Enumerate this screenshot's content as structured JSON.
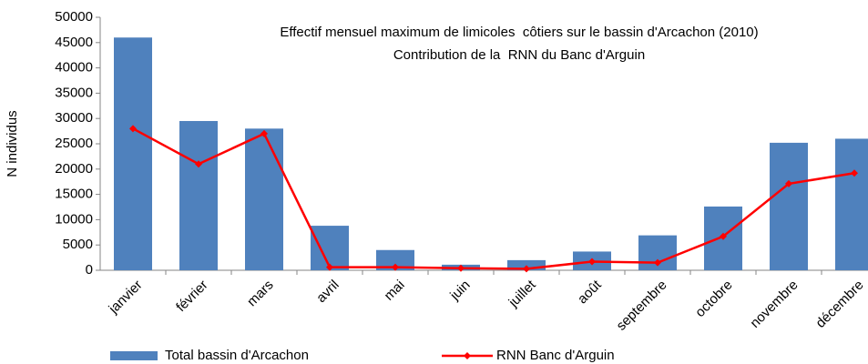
{
  "chart_data": {
    "type": "bar",
    "title": "Effectif mensuel maximum de limicoles  côtiers sur le bassin d'Arcachon (2010)",
    "subtitle": "Contribution de la  RNN du Banc d'Arguin",
    "y_label": "N individus",
    "categories": [
      "janvier",
      "février",
      "mars",
      "avril",
      "mai",
      "juin",
      "juillet",
      "août",
      "septembre",
      "octobre",
      "novembre",
      "décembre"
    ],
    "series": [
      {
        "name": "Total bassin d'Arcachon",
        "type": "bar",
        "color": "#4f81bd",
        "values": [
          46000,
          29500,
          28000,
          8800,
          4000,
          1100,
          2000,
          3700,
          6900,
          12600,
          25200,
          26000
        ]
      },
      {
        "name": "RNN Banc d'Arguin",
        "type": "line",
        "color": "#ff0000",
        "values": [
          28000,
          21000,
          27000,
          600,
          600,
          400,
          300,
          1700,
          1500,
          6700,
          17100,
          19200
        ]
      }
    ],
    "ylim": [
      0,
      50000
    ],
    "yticks": [
      0,
      5000,
      10000,
      15000,
      20000,
      25000,
      30000,
      35000,
      40000,
      45000,
      50000
    ],
    "grid": false,
    "legend": "bottom"
  }
}
